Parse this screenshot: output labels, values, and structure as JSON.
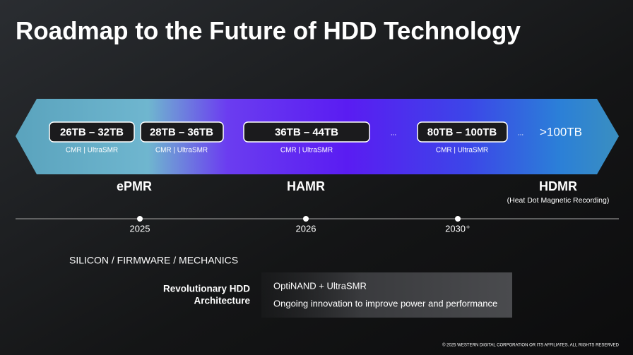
{
  "header": {
    "title": "Roadmap to the Future of HDD Technology"
  },
  "capacities": [
    {
      "label": "26TB – 32TB",
      "sub": "CMR | UltraSMR"
    },
    {
      "label": "28TB – 36TB",
      "sub": "CMR | UltraSMR"
    },
    {
      "label": "36TB – 44TB",
      "sub": "CMR | UltraSMR"
    },
    {
      "label": "80TB – 100TB",
      "sub": "CMR | UltraSMR"
    }
  ],
  "ellipsis": "...",
  "future_capacity": ">100TB",
  "technologies": [
    {
      "name": "ePMR"
    },
    {
      "name": "HAMR"
    },
    {
      "name": "HDMR",
      "note": "(Heat Dot Magnetic Recording)"
    }
  ],
  "timeline": [
    "2025",
    "2026",
    "2030⁺"
  ],
  "section": {
    "heading": "SILICON / FIRMWARE / MECHANICS",
    "label_lines": [
      "Revolutionary HDD",
      "Architecture"
    ],
    "items": [
      "OptiNAND + UltraSMR",
      "Ongoing innovation to improve power and performance"
    ]
  },
  "footer": "© 2025 WESTERN DIGITAL CORPORATION OR ITS AFFILIATES. ALL RIGHTS RESERVED"
}
